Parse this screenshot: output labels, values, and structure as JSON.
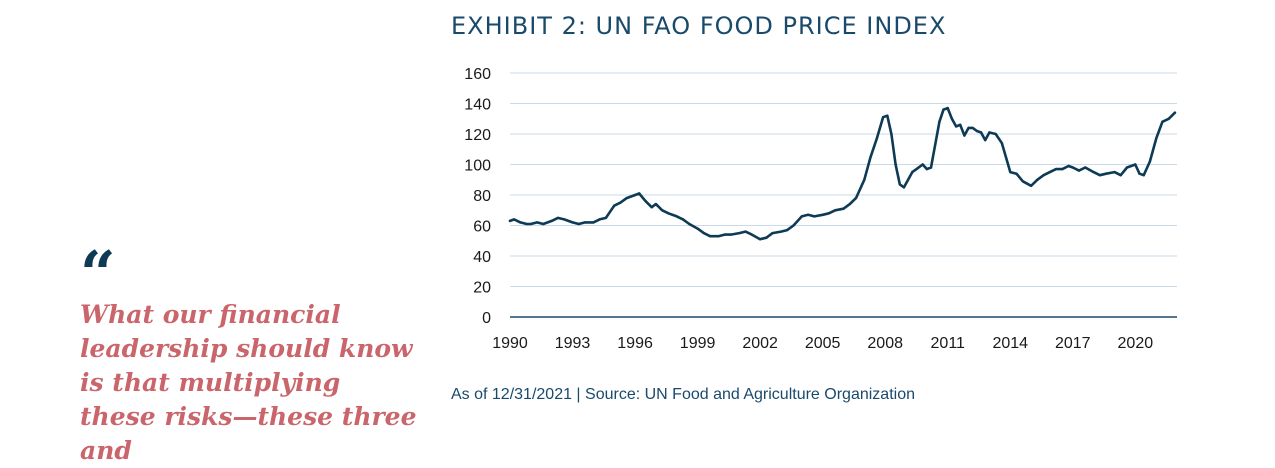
{
  "quote": {
    "mark": "“",
    "text": "What our financial leadership should know is that multiplying these risks—these three and"
  },
  "chart_data": {
    "type": "line",
    "title": "EXHIBIT 2: UN FAO FOOD PRICE INDEX",
    "source": "As of 12/31/2021 | Source: UN Food and Agriculture Organization",
    "xlabel": "",
    "ylabel": "",
    "xlim": [
      1990,
      2022
    ],
    "ylim": [
      0,
      160
    ],
    "x_ticks": [
      "1990",
      "1993",
      "1996",
      "1999",
      "2002",
      "2005",
      "2008",
      "2011",
      "2014",
      "2017",
      "2020"
    ],
    "y_ticks": [
      "0",
      "20",
      "40",
      "60",
      "80",
      "100",
      "120",
      "140",
      "160"
    ],
    "grid": true,
    "legend": "none",
    "color": "#0e3a55",
    "series": [
      {
        "x": [
          1990.0,
          1990.2,
          1990.5,
          1990.8,
          1991.0,
          1991.3,
          1991.6,
          1992.0,
          1992.3,
          1992.6,
          1993.0,
          1993.3,
          1993.6,
          1994.0,
          1994.3,
          1994.6,
          1995.0,
          1995.3,
          1995.6,
          1996.0,
          1996.2,
          1996.5,
          1996.8,
          1997.0,
          1997.3,
          1997.6,
          1998.0,
          1998.3,
          1998.6,
          1999.0,
          1999.3,
          1999.6,
          2000.0,
          2000.3,
          2000.6,
          2001.0,
          2001.3,
          2001.6,
          2002.0,
          2002.3,
          2002.6,
          2003.0,
          2003.3,
          2003.6,
          2004.0,
          2004.3,
          2004.6,
          2005.0,
          2005.3,
          2005.6,
          2006.0,
          2006.3,
          2006.6,
          2007.0,
          2007.3,
          2007.6,
          2007.9,
          2008.1,
          2008.3,
          2008.5,
          2008.7,
          2008.9,
          2009.1,
          2009.3,
          2009.5,
          2009.8,
          2010.0,
          2010.2,
          2010.4,
          2010.6,
          2010.8,
          2011.0,
          2011.2,
          2011.4,
          2011.6,
          2011.8,
          2012.0,
          2012.2,
          2012.4,
          2012.6,
          2012.8,
          2013.0,
          2013.3,
          2013.6,
          2014.0,
          2014.3,
          2014.6,
          2015.0,
          2015.3,
          2015.6,
          2015.9,
          2016.2,
          2016.5,
          2016.8,
          2017.0,
          2017.3,
          2017.6,
          2018.0,
          2018.3,
          2018.6,
          2019.0,
          2019.3,
          2019.6,
          2020.0,
          2020.2,
          2020.4,
          2020.7,
          2021.0,
          2021.3,
          2021.6,
          2021.9
        ],
        "values": [
          63,
          64,
          62,
          61,
          61,
          62,
          61,
          63,
          65,
          64,
          62,
          61,
          62,
          62,
          64,
          65,
          73,
          75,
          78,
          80,
          81,
          76,
          72,
          74,
          70,
          68,
          66,
          64,
          61,
          58,
          55,
          53,
          53,
          54,
          54,
          55,
          56,
          54,
          51,
          52,
          55,
          56,
          57,
          60,
          66,
          67,
          66,
          67,
          68,
          70,
          71,
          74,
          78,
          90,
          105,
          117,
          131,
          132,
          120,
          100,
          87,
          85,
          90,
          95,
          97,
          100,
          97,
          98,
          113,
          128,
          136,
          137,
          130,
          125,
          126,
          119,
          124,
          124,
          122,
          121,
          116,
          121,
          120,
          114,
          95,
          94,
          89,
          86,
          90,
          93,
          95,
          97,
          97,
          99,
          98,
          96,
          98,
          95,
          93,
          94,
          95,
          93,
          98,
          100,
          94,
          93,
          102,
          117,
          128,
          130,
          134
        ]
      }
    ]
  }
}
